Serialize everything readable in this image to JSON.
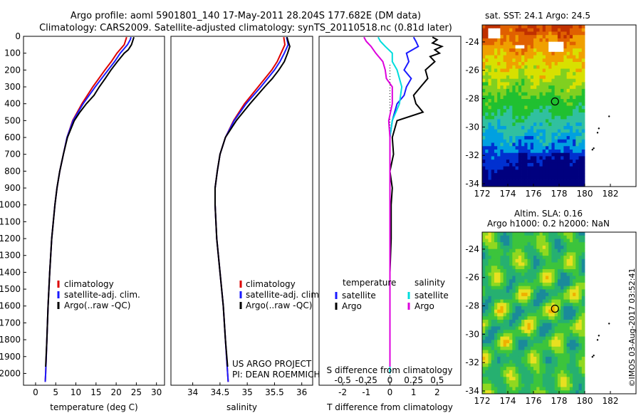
{
  "header": {
    "title_line1": "Argo profile: aoml 5901801_140 17-May-2011 28.204S 177.682E (DM data)",
    "title_line2": "Climatology: CARS2009. Satellite-adjusted climatology: synTS_20110518.nc (0.81d later)"
  },
  "project": {
    "line1": "US ARGO PROJECT",
    "line2": "PI: DEAN ROEMMICH"
  },
  "stamp": "©IMOS 03-Aug-2017 03:52:41",
  "colors": {
    "climatology": "#dd0000",
    "satellite": "#1a1aff",
    "argo": "#000000",
    "sat_diff_s": "#00dddd",
    "argo_diff_s": "#dd00dd"
  },
  "chart_data": [
    {
      "type": "line",
      "xlabel": "temperature (deg C)",
      "ylabel": "",
      "xlim": [
        -3,
        32
      ],
      "ylim": [
        2070,
        0
      ],
      "xticks": [
        0,
        5,
        10,
        15,
        20,
        25,
        30
      ],
      "yticks": [
        0,
        100,
        200,
        300,
        400,
        500,
        600,
        700,
        800,
        900,
        1000,
        1100,
        1200,
        1300,
        1400,
        1500,
        1600,
        1700,
        1800,
        1900,
        2000
      ],
      "legend": [
        "climatology",
        "satellite-adj. clim.",
        "Argo(..raw -QC)"
      ],
      "legend_position": "lower-center",
      "series": [
        {
          "name": "climatology",
          "color": "#dd0000",
          "depth": [
            5,
            20,
            50,
            100,
            150,
            200,
            250,
            300,
            400,
            500,
            600,
            700,
            800,
            900,
            1000,
            1200,
            1400,
            1600,
            1800,
            2000,
            2050
          ],
          "values": [
            22.6,
            22.4,
            22.0,
            20.2,
            18.8,
            17.2,
            15.7,
            14.2,
            11.5,
            9.2,
            7.8,
            6.9,
            6.0,
            5.3,
            4.8,
            4.0,
            3.5,
            3.1,
            2.8,
            2.5,
            2.4
          ]
        },
        {
          "name": "satellite-adj. clim.",
          "color": "#1a1aff",
          "depth": [
            5,
            20,
            50,
            100,
            150,
            200,
            250,
            300,
            400,
            500,
            600,
            700,
            800,
            900,
            1000,
            1200,
            1400,
            1600,
            1800,
            2000,
            2050
          ],
          "values": [
            23.7,
            23.5,
            22.8,
            21.0,
            19.6,
            18.0,
            16.4,
            14.8,
            11.8,
            9.3,
            7.8,
            6.9,
            6.0,
            5.3,
            4.8,
            4.0,
            3.5,
            3.1,
            2.8,
            2.5,
            2.4
          ]
        },
        {
          "name": "Argo(..raw -QC)",
          "color": "#000000",
          "depth": [
            5,
            20,
            50,
            80,
            100,
            150,
            200,
            250,
            300,
            350,
            400,
            450,
            500,
            600,
            700,
            800,
            900,
            1000,
            1200,
            1400,
            1600,
            1800,
            1960
          ],
          "values": [
            24.4,
            24.2,
            23.8,
            23.0,
            22.0,
            20.3,
            18.7,
            17.3,
            15.8,
            14.5,
            12.6,
            11.0,
            9.6,
            7.9,
            6.9,
            6.0,
            5.3,
            4.8,
            4.0,
            3.5,
            3.1,
            2.8,
            2.5
          ]
        }
      ]
    },
    {
      "type": "line",
      "xlabel": "salinity",
      "ylabel": "",
      "xlim": [
        33.6,
        36.2
      ],
      "ylim": [
        2070,
        0
      ],
      "xticks": [
        34,
        34.5,
        35,
        35.5,
        36
      ],
      "legend": [
        "climatology",
        "satellite-adj. clim.",
        "Argo(..raw -QC)"
      ],
      "legend_position": "lower-right",
      "series": [
        {
          "name": "climatology",
          "color": "#dd0000",
          "depth": [
            5,
            50,
            100,
            150,
            200,
            300,
            400,
            500,
            600,
            700,
            800,
            900,
            1000,
            1200,
            1400,
            1600,
            1800,
            2000,
            2050
          ],
          "values": [
            35.67,
            35.69,
            35.62,
            35.55,
            35.45,
            35.2,
            34.95,
            34.75,
            34.6,
            34.5,
            34.45,
            34.41,
            34.41,
            34.44,
            34.5,
            34.56,
            34.6,
            34.64,
            34.65
          ]
        },
        {
          "name": "satellite-adj. clim.",
          "color": "#1a1aff",
          "depth": [
            5,
            50,
            100,
            150,
            200,
            300,
            400,
            500,
            600,
            700,
            800,
            900,
            1000,
            1200,
            1400,
            1600,
            1800,
            2000,
            2050
          ],
          "values": [
            35.72,
            35.75,
            35.68,
            35.6,
            35.5,
            35.25,
            34.98,
            34.76,
            34.6,
            34.5,
            34.45,
            34.41,
            34.41,
            34.44,
            34.5,
            34.56,
            34.6,
            34.64,
            34.65
          ]
        },
        {
          "name": "Argo(..raw -QC)",
          "color": "#000000",
          "depth": [
            5,
            30,
            60,
            100,
            150,
            200,
            250,
            300,
            400,
            500,
            600,
            700,
            800,
            900,
            1000,
            1200,
            1400,
            1600,
            1800,
            1960
          ],
          "values": [
            35.73,
            35.75,
            35.78,
            35.74,
            35.68,
            35.58,
            35.46,
            35.32,
            35.05,
            34.8,
            34.6,
            34.5,
            34.45,
            34.41,
            34.41,
            34.44,
            34.5,
            34.56,
            34.6,
            34.64
          ]
        }
      ]
    },
    {
      "type": "line",
      "xlabel": "T difference from climatology",
      "xlabel2": "S difference from climatology",
      "xlim": [
        -3,
        3
      ],
      "ylim": [
        2070,
        0
      ],
      "xticks": [
        -2,
        -1,
        0,
        1,
        2
      ],
      "xticks_s": [
        -0.5,
        -0.25,
        0,
        0.25,
        0.5
      ],
      "legend_temperature": {
        "heading": "temperature",
        "items": [
          "satellite",
          "Argo"
        ]
      },
      "legend_salinity": {
        "heading": "salinity",
        "items": [
          "satellite",
          "Argo"
        ]
      },
      "series": [
        {
          "name": "satellite",
          "quantity": "temperature",
          "color": "#1a1aff",
          "depth": [
            5,
            30,
            60,
            100,
            150,
            200,
            250,
            300,
            350,
            400,
            450,
            500,
            600,
            700,
            800,
            900,
            1000,
            1200,
            1400,
            1600,
            1800,
            2000
          ],
          "values": [
            1.0,
            1.1,
            1.2,
            0.7,
            0.8,
            0.6,
            0.9,
            0.7,
            0.6,
            0.3,
            0.2,
            0.1,
            0.0,
            0.0,
            0.0,
            0.0,
            0.0,
            0.0,
            0.0,
            0.0,
            0.0,
            0.0
          ]
        },
        {
          "name": "Argo",
          "quantity": "temperature",
          "color": "#000000",
          "depth": [
            5,
            20,
            40,
            60,
            80,
            100,
            120,
            150,
            200,
            250,
            300,
            350,
            400,
            450,
            500,
            600,
            700,
            800,
            900,
            1000,
            1200,
            1400,
            1600,
            1800,
            1960
          ],
          "values": [
            1.8,
            2.0,
            1.8,
            2.2,
            1.9,
            2.1,
            1.7,
            1.9,
            1.5,
            1.6,
            1.3,
            1.0,
            1.1,
            1.4,
            0.3,
            0.1,
            0.15,
            0.0,
            0.1,
            0.05,
            0.05,
            0.0,
            0.0,
            0.0,
            0.0
          ]
        },
        {
          "name": "satellite",
          "quantity": "salinity",
          "color": "#00dddd",
          "depth": [
            5,
            30,
            60,
            100,
            150,
            200,
            300,
            400,
            500,
            600,
            800,
            1000,
            1200,
            1400,
            1600,
            1800,
            2000
          ],
          "values": [
            -0.5,
            -0.4,
            -0.2,
            0.1,
            0.1,
            0.3,
            0.5,
            0.4,
            0.1,
            0.0,
            0.0,
            0.0,
            0.0,
            0.0,
            0.0,
            0.0,
            0.0
          ]
        },
        {
          "name": "Argo",
          "quantity": "salinity",
          "color": "#dd00dd",
          "depth": [
            5,
            30,
            60,
            100,
            150,
            200,
            250,
            300,
            400,
            500,
            600,
            800,
            1000,
            1200,
            1400,
            1600,
            1800,
            1960
          ],
          "values": [
            -1.1,
            -1.0,
            -0.8,
            -0.6,
            -0.3,
            -0.2,
            -0.15,
            0.1,
            0.1,
            -0.05,
            0.0,
            0.0,
            0.0,
            0.0,
            0.0,
            0.0,
            0.0,
            0.0
          ]
        }
      ]
    },
    {
      "type": "heatmap",
      "title": "sat. SST: 24.1  Argo: 24.5",
      "xlim": [
        172,
        180
      ],
      "ylim": [
        -34.2,
        -22.8
      ],
      "xticks": [
        172,
        174,
        176,
        178,
        180,
        182
      ],
      "yticks": [
        -24,
        -26,
        -28,
        -30,
        -32,
        -34
      ],
      "marker": {
        "lon": 177.68,
        "lat": -28.2
      }
    },
    {
      "type": "heatmap",
      "title": "Altim. SLA: 0.16",
      "subtitle": "Argo h1000: 0.2 h2000: NaN",
      "xlim": [
        172,
        180
      ],
      "ylim": [
        -34.2,
        -22.8
      ],
      "xticks": [
        172,
        174,
        176,
        178,
        180,
        182
      ],
      "yticks": [
        -24,
        -26,
        -28,
        -30,
        -32,
        -34
      ],
      "marker": {
        "lon": 177.68,
        "lat": -28.2
      }
    }
  ]
}
